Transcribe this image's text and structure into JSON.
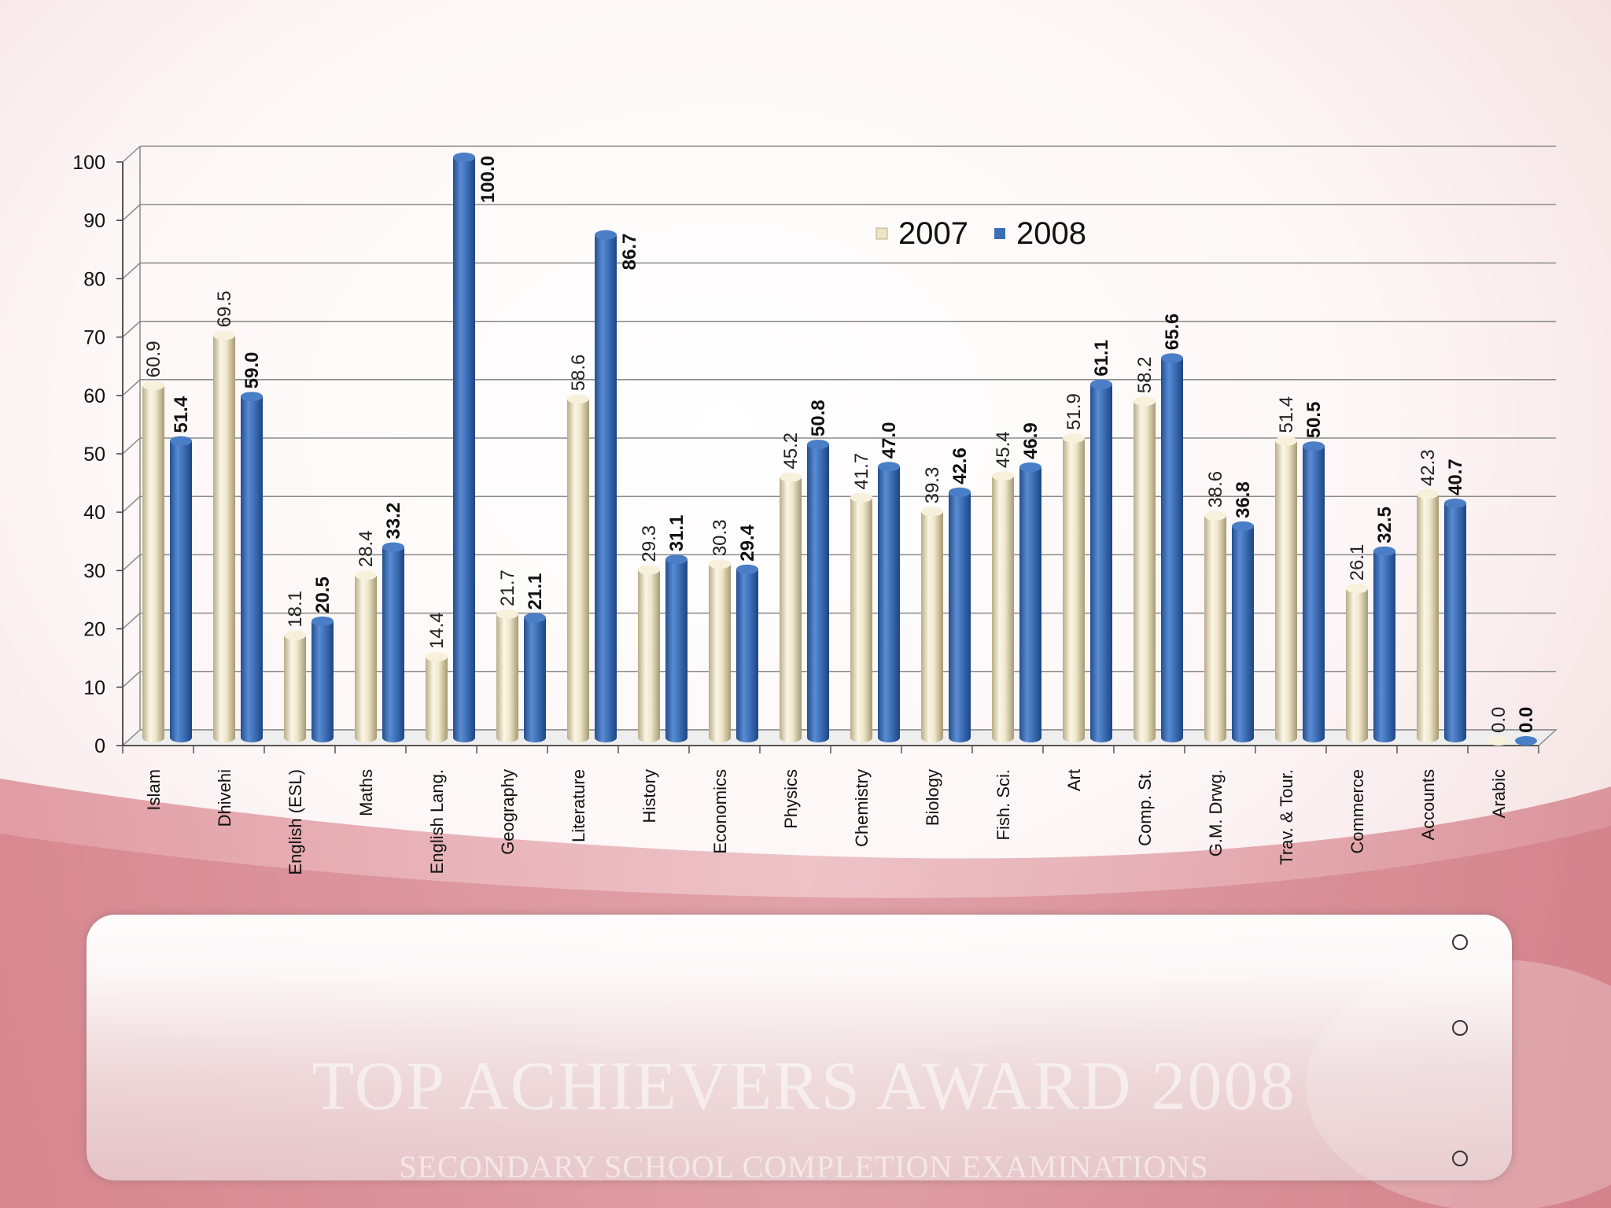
{
  "chart_data": {
    "type": "bar",
    "categories": [
      "Islam",
      "Dhivehi",
      "English (ESL)",
      "Maths",
      "English Lang.",
      "Geography",
      "Literature",
      "History",
      "Economics",
      "Physics",
      "Chemistry",
      "Biology",
      "Fish. Sci.",
      "Art",
      "Comp. St.",
      "G.M. Drwg.",
      "Trav. & Tour.",
      "Commerce",
      "Accounts",
      "Arabic"
    ],
    "series": [
      {
        "name": "2007",
        "color": "#ede4c6",
        "values": [
          60.9,
          69.5,
          18.1,
          28.4,
          14.4,
          21.7,
          58.6,
          29.3,
          30.3,
          45.2,
          41.7,
          39.3,
          45.4,
          51.9,
          58.2,
          38.6,
          51.4,
          26.1,
          42.3,
          0.0
        ]
      },
      {
        "name": "2008",
        "color": "#3c6fb5",
        "values": [
          51.4,
          59.0,
          20.5,
          33.2,
          100.0,
          21.1,
          86.7,
          31.1,
          29.4,
          50.8,
          47.0,
          42.6,
          46.9,
          61.1,
          65.6,
          36.8,
          50.5,
          32.5,
          40.7,
          0.0
        ]
      }
    ],
    "yticks": [
      "0",
      "10",
      "20",
      "30",
      "40",
      "50",
      "60",
      "70",
      "80",
      "90",
      "100"
    ],
    "ylim": [
      0,
      100
    ],
    "grid": true,
    "legend_position": "top-center",
    "style": "3d-cylinder"
  },
  "watermark": {
    "title": "TOP ACHIEVERS AWARD 2008",
    "subtitle": "SECONDARY SCHOOL COMPLETION EXAMINATIONS"
  },
  "textbox": {
    "bullets": [
      "",
      "",
      ""
    ]
  }
}
